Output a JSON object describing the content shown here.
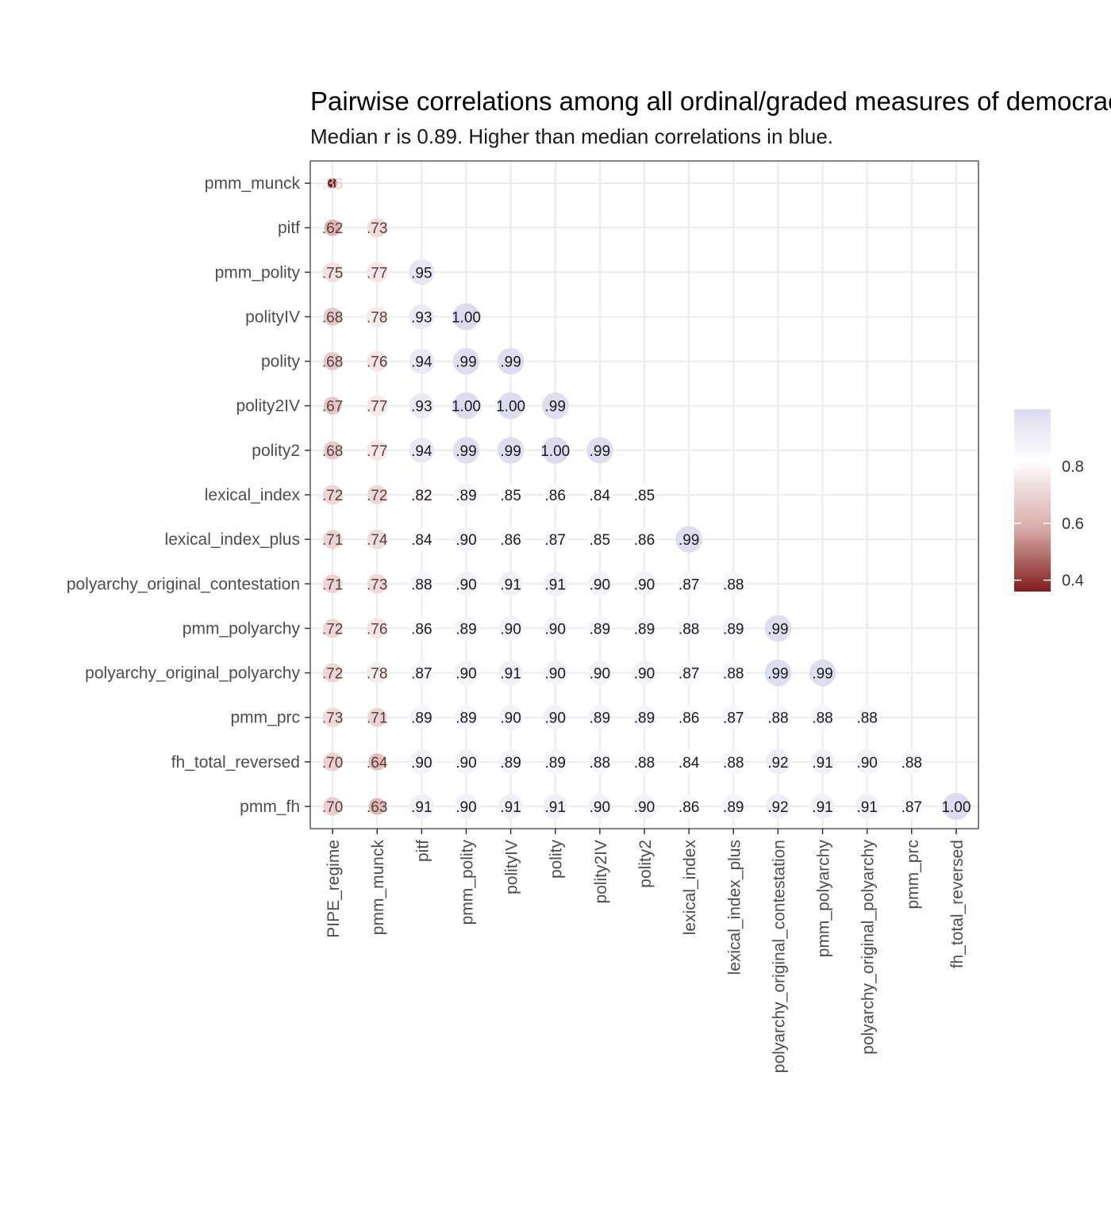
{
  "chart_data": {
    "type": "heatmap",
    "title": "Pairwise correlations among all ordinal/graded measures of democracy",
    "subtitle": "Median r is 0.89. Higher than median correlations in blue.",
    "median_r": 0.89,
    "x_labels": [
      "PIPE_regime",
      "pmm_munck",
      "pitf",
      "pmm_polity",
      "polityIV",
      "polity",
      "polity2IV",
      "polity2",
      "lexical_index",
      "lexical_index_plus",
      "polyarchy_original_contestation",
      "pmm_polyarchy",
      "polyarchy_original_polyarchy",
      "pmm_prc",
      "fh_total_reversed"
    ],
    "y_labels": [
      "pmm_munck",
      "pitf",
      "pmm_polity",
      "polityIV",
      "polity",
      "polity2IV",
      "polity2",
      "lexical_index",
      "lexical_index_plus",
      "polyarchy_original_contestation",
      "pmm_polyarchy",
      "polyarchy_original_polyarchy",
      "pmm_prc",
      "fh_total_reversed",
      "pmm_fh"
    ],
    "values": [
      [
        0.36
      ],
      [
        0.62,
        0.73
      ],
      [
        0.75,
        0.77,
        0.95
      ],
      [
        0.68,
        0.78,
        0.93,
        1.0
      ],
      [
        0.68,
        0.76,
        0.94,
        0.99,
        0.99
      ],
      [
        0.67,
        0.77,
        0.93,
        1.0,
        1.0,
        0.99
      ],
      [
        0.68,
        0.77,
        0.94,
        0.99,
        0.99,
        1.0,
        0.99
      ],
      [
        0.72,
        0.72,
        0.82,
        0.89,
        0.85,
        0.86,
        0.84,
        0.85
      ],
      [
        0.71,
        0.74,
        0.84,
        0.9,
        0.86,
        0.87,
        0.85,
        0.86,
        0.99
      ],
      [
        0.71,
        0.73,
        0.88,
        0.9,
        0.91,
        0.91,
        0.9,
        0.9,
        0.87,
        0.88
      ],
      [
        0.72,
        0.76,
        0.86,
        0.89,
        0.9,
        0.9,
        0.89,
        0.89,
        0.88,
        0.89,
        0.99
      ],
      [
        0.72,
        0.78,
        0.87,
        0.9,
        0.91,
        0.9,
        0.9,
        0.9,
        0.87,
        0.88,
        0.99,
        0.99
      ],
      [
        0.73,
        0.71,
        0.89,
        0.89,
        0.9,
        0.9,
        0.89,
        0.89,
        0.86,
        0.87,
        0.88,
        0.88,
        0.88
      ],
      [
        0.7,
        0.64,
        0.9,
        0.9,
        0.89,
        0.89,
        0.88,
        0.88,
        0.84,
        0.88,
        0.92,
        0.91,
        0.9,
        0.88
      ],
      [
        0.7,
        0.63,
        0.91,
        0.9,
        0.91,
        0.91,
        0.9,
        0.9,
        0.86,
        0.89,
        0.92,
        0.91,
        0.91,
        0.87,
        1.0
      ]
    ],
    "labels": [
      [
        ".36"
      ],
      [
        ".62",
        ".73"
      ],
      [
        ".75",
        ".77",
        ".95"
      ],
      [
        ".68",
        ".78",
        ".93",
        "1.00"
      ],
      [
        ".68",
        ".76",
        ".94",
        ".99",
        ".99"
      ],
      [
        ".67",
        ".77",
        ".93",
        "1.00",
        "1.00",
        ".99"
      ],
      [
        ".68",
        ".77",
        ".94",
        ".99",
        ".99",
        "1.00",
        ".99"
      ],
      [
        ".72",
        ".72",
        ".82",
        ".89",
        ".85",
        ".86",
        ".84",
        ".85"
      ],
      [
        ".71",
        ".74",
        ".84",
        ".90",
        ".86",
        ".87",
        ".85",
        ".86",
        ".99"
      ],
      [
        ".71",
        ".73",
        ".88",
        ".90",
        ".91",
        ".91",
        ".90",
        ".90",
        ".87",
        ".88"
      ],
      [
        ".72",
        ".76",
        ".86",
        ".89",
        ".90",
        ".90",
        ".89",
        ".89",
        ".88",
        ".89",
        ".99"
      ],
      [
        ".72",
        ".78",
        ".87",
        ".90",
        ".91",
        ".90",
        ".90",
        ".90",
        ".87",
        ".88",
        ".99",
        ".99"
      ],
      [
        ".73",
        ".71",
        ".89",
        ".89",
        ".90",
        ".90",
        ".89",
        ".89",
        ".86",
        ".87",
        ".88",
        ".88",
        ".88"
      ],
      [
        ".70",
        ".64",
        ".90",
        ".90",
        ".89",
        ".89",
        ".88",
        ".88",
        ".84",
        ".88",
        ".92",
        ".91",
        ".90",
        ".88"
      ],
      [
        ".70",
        ".63",
        ".91",
        ".90",
        ".91",
        ".91",
        ".90",
        ".90",
        ".86",
        ".89",
        ".92",
        ".91",
        ".91",
        ".87",
        "1.00"
      ]
    ],
    "legend": {
      "position": "right",
      "breaks": [
        0.4,
        0.6,
        0.8
      ],
      "break_labels": [
        "0.4",
        "0.6",
        "0.8"
      ],
      "range": [
        0.36,
        1.0
      ]
    },
    "colors": {
      "low": "#7f1d1d",
      "mid": "#ffffff",
      "high": "#dcdcf0",
      "grid": "#ebebeb",
      "border": "#333333"
    },
    "grid": true
  }
}
